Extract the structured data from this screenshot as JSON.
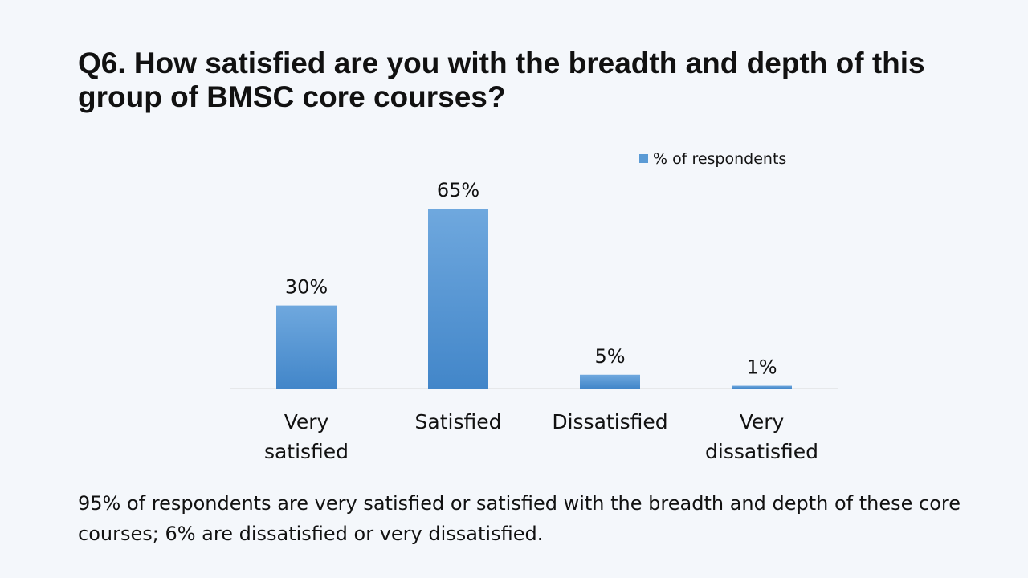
{
  "slide": {
    "title": "Q6. How satisfied are you with the breadth and depth of this group of BMSC core courses?",
    "footnote": "95% of respondents are very satisfied or satisfied with the breadth and depth of these core courses; 6% are dissatisfied or very dissatisfied."
  },
  "chart_data": {
    "type": "bar",
    "categories": [
      "Very satisfied",
      "Satisfied",
      "Dissatisfied",
      "Very dissatisfied"
    ],
    "series": [
      {
        "name": "% of respondents",
        "values": [
          30,
          65,
          5,
          1
        ],
        "labels": [
          "30%",
          "65%",
          "5%",
          "1%"
        ]
      }
    ],
    "legend": "top-right",
    "grid": false,
    "ylim": [
      0,
      65
    ],
    "colors": {
      "bar_top": "#6fa8de",
      "bar_bottom": "#4286c9",
      "axis": "#d9d9d9"
    }
  }
}
